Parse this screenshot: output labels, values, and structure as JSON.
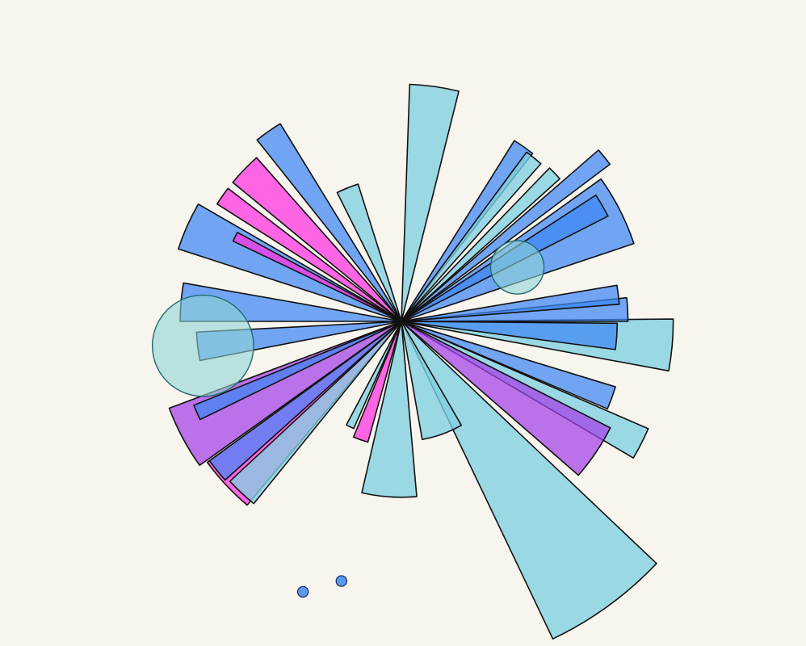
{
  "colors": {
    "background": "#f8f4ee",
    "cyan": "#7fd0e0",
    "blue": "#3d86f5",
    "magenta": "#ff2ee0",
    "purple": "#a23ee8",
    "teal_bubble": "#8fd3d6"
  },
  "chart_data": {
    "type": "polar-bar",
    "title": "",
    "angular_axis": {
      "unit": "degrees",
      "zero": "north",
      "direction": "clockwise"
    },
    "radial_axis": {
      "min": 0,
      "max": 100
    },
    "grid": false,
    "legend": false,
    "series": [
      {
        "color": "cyan",
        "bars": [
          {
            "theta": 8,
            "width": 12,
            "r": 89
          },
          {
            "theta": 39,
            "width": 5,
            "r": 79
          },
          {
            "theta": 46,
            "width": 4,
            "r": 80
          },
          {
            "theta": 95,
            "width": 11,
            "r": 102
          },
          {
            "theta": 117,
            "width": 7,
            "r": 101
          },
          {
            "theta": 144,
            "width": 21,
            "r": 132
          },
          {
            "theta": 160,
            "width": 20,
            "r": 45
          },
          {
            "theta": 184,
            "width": 18,
            "r": 66
          },
          {
            "theta": 223,
            "width": 8,
            "r": 88
          },
          {
            "theta": 206,
            "width": 4,
            "r": 44
          },
          {
            "theta": 338,
            "width": 9,
            "r": 54
          }
        ]
      },
      {
        "color": "blue",
        "bars": [
          {
            "theta": 35,
            "width": 6,
            "r": 80
          },
          {
            "theta": 51,
            "width": 4,
            "r": 98
          },
          {
            "theta": 60,
            "width": 6,
            "r": 87
          },
          {
            "theta": 63,
            "width": 17,
            "r": 92
          },
          {
            "theta": 83,
            "width": 5,
            "r": 82
          },
          {
            "theta": 87,
            "width": 6,
            "r": 85
          },
          {
            "theta": 94,
            "width": 7,
            "r": 81
          },
          {
            "theta": 110,
            "width": 6,
            "r": 84
          },
          {
            "theta": 231,
            "width": 6,
            "r": 89
          },
          {
            "theta": 246,
            "width": 4,
            "r": 84
          },
          {
            "theta": 263,
            "width": 8,
            "r": 77
          },
          {
            "theta": 275,
            "width": 10,
            "r": 83
          },
          {
            "theta": 294,
            "width": 12,
            "r": 88
          },
          {
            "theta": 325,
            "width": 7,
            "r": 87
          }
        ]
      },
      {
        "color": "magenta",
        "bars": [
          {
            "theta": 199,
            "width": 7,
            "r": 47
          },
          {
            "theta": 227,
            "width": 14,
            "r": 90
          },
          {
            "theta": 305,
            "width": 5,
            "r": 82
          },
          {
            "theta": 314,
            "width": 9,
            "r": 82
          },
          {
            "theta": 297,
            "width": 3,
            "r": 70
          }
        ]
      },
      {
        "color": "purple",
        "bars": [
          {
            "theta": 124,
            "width": 14,
            "r": 88
          },
          {
            "theta": 242,
            "width": 15,
            "r": 93
          }
        ]
      }
    ],
    "bubbles": [
      {
        "theta": 263,
        "r": 75,
        "size": 19
      },
      {
        "theta": 65,
        "r": 48,
        "size": 10
      }
    ],
    "points": [
      {
        "theta": 193,
        "r": 100,
        "size": 2
      },
      {
        "theta": 200,
        "r": 108,
        "size": 2
      }
    ]
  }
}
